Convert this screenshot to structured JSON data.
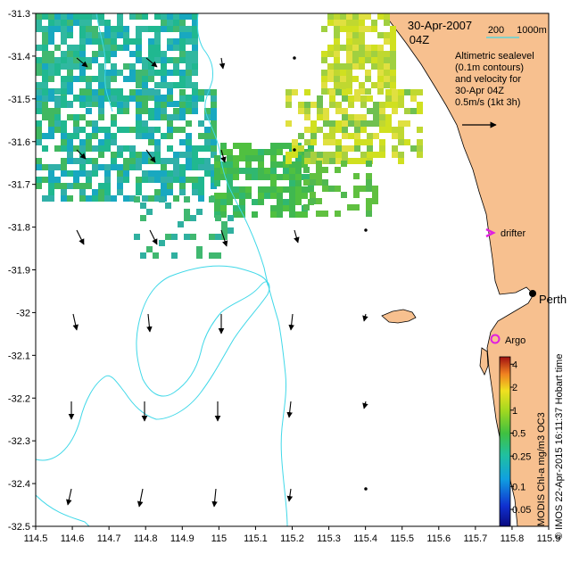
{
  "header": {
    "date": "30-Apr-2007",
    "time": "04Z",
    "depth_label_1": "200",
    "depth_label_2": "1000m"
  },
  "annotation": {
    "line1": "Altimetric sealevel",
    "line2": "(0.1m contours)",
    "line3": "and velocity for",
    "line4": "30-Apr 04Z",
    "line5": "0.5m/s (1kt 3h)"
  },
  "places": {
    "perth": "Perth",
    "argo": "Argo",
    "drifter": "drifter"
  },
  "colorbar": {
    "title": "MODIS Chl-a mg/m3 OC3",
    "ticks": [
      "4",
      "2",
      "1",
      "0.5",
      "0.25",
      "0.1",
      "0.05"
    ],
    "tick_values": [
      4,
      2,
      1,
      0.5,
      0.25,
      0.1,
      0.05
    ],
    "range": [
      0.03,
      5
    ],
    "scale": "log"
  },
  "credit": "© IMOS 22-Apr-2015 16:11:37 Hobart time",
  "axes": {
    "x_ticks": [
      "114.5",
      "114.6",
      "114.7",
      "114.8",
      "114.9",
      "115",
      "115.1",
      "115.2",
      "115.3",
      "115.4",
      "115.5",
      "115.6",
      "115.7",
      "115.8",
      "115.9"
    ],
    "y_ticks": [
      "-31.3",
      "-31.4",
      "-31.5",
      "-31.6",
      "-31.7",
      "-31.8",
      "-31.9",
      "-32",
      "-32.1",
      "-32.2",
      "-32.3",
      "-32.4",
      "-32.5"
    ],
    "lon_range": [
      114.5,
      115.9
    ],
    "lat_range": [
      -32.5,
      -31.3
    ]
  },
  "colors": {
    "land": "#f7c08f",
    "contour": "#40d8e8",
    "depth_line": "#40d8e8",
    "argo": "#e020e0",
    "drifter": "#e020e0",
    "arrow": "#000000"
  }
}
